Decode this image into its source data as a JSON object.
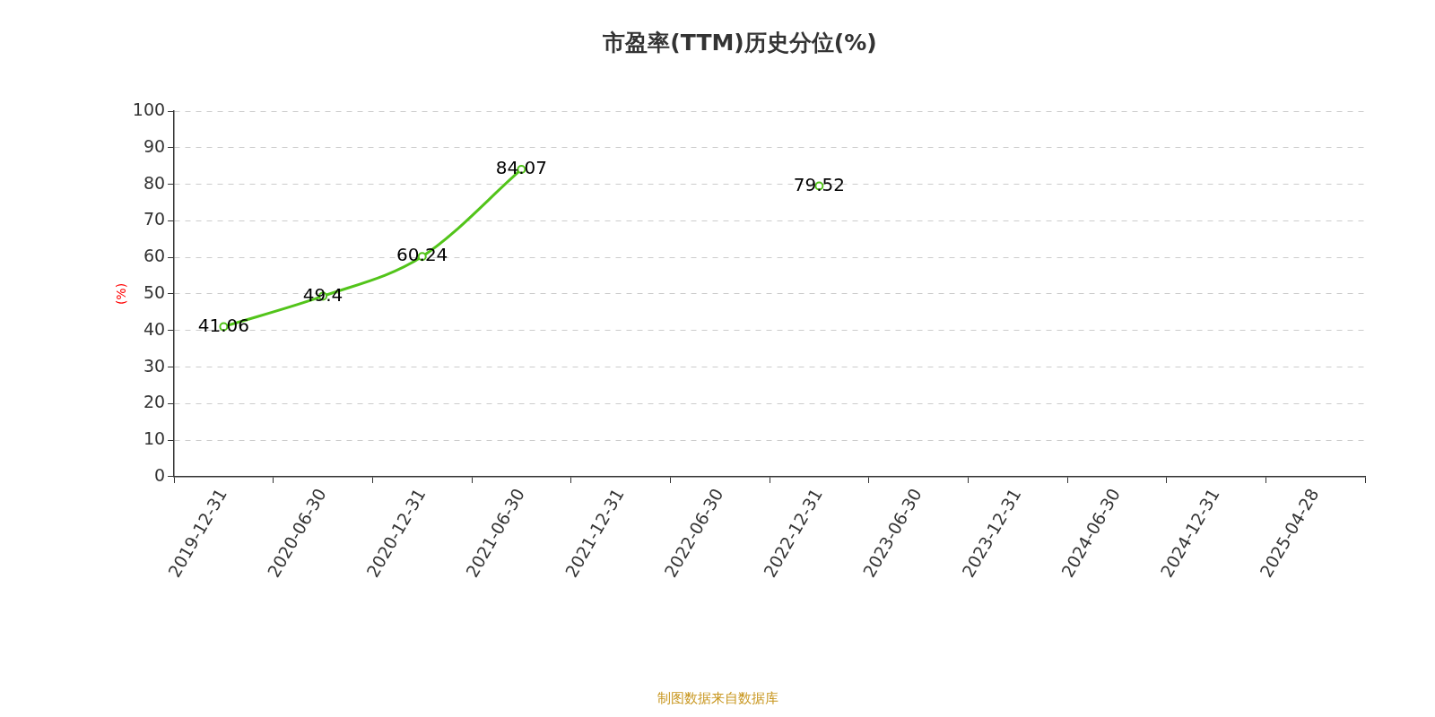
{
  "chart_data": {
    "type": "line",
    "title": "市盈率(TTM)历史分位(%)",
    "ylabel": "(%)",
    "categories": [
      "2019-12-31",
      "2020-06-30",
      "2020-12-31",
      "2021-06-30",
      "2021-12-31",
      "2022-06-30",
      "2022-12-31",
      "2023-06-30",
      "2023-12-31",
      "2024-06-30",
      "2024-12-31",
      "2025-04-28"
    ],
    "series": [
      {
        "color": "#52c41a",
        "values": [
          41.06,
          49.4,
          60.24,
          84.07,
          null,
          null,
          79.52,
          null,
          null,
          null,
          null,
          null
        ]
      }
    ],
    "ylim": [
      0,
      100
    ],
    "yticks": [
      0,
      10,
      20,
      30,
      40,
      50,
      60,
      70,
      80,
      90,
      100
    ],
    "grid": "y",
    "legend": false,
    "marker": "circle",
    "line_style": "solid",
    "data_labels": true,
    "annotations": [
      "制图数据来自数据库"
    ]
  }
}
